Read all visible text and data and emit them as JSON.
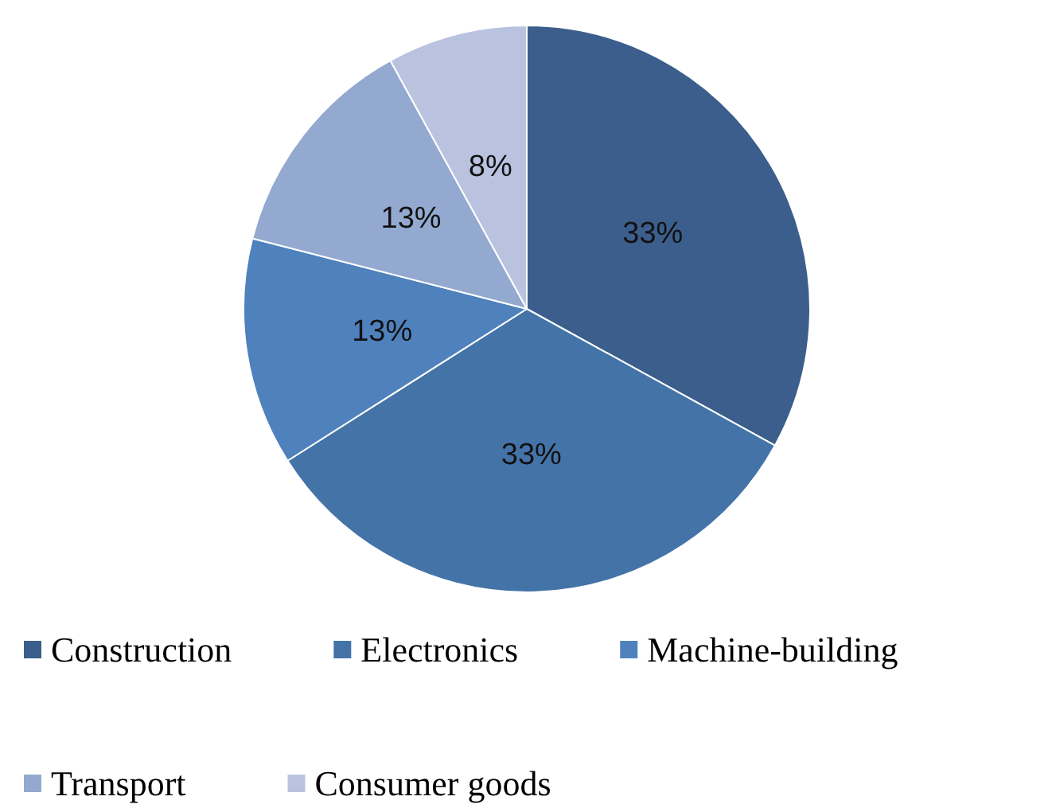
{
  "chart_data": {
    "type": "pie",
    "categories": [
      "Construction",
      "Electronics",
      "Machine-building",
      "Transport",
      "Consumer goods"
    ],
    "values": [
      33,
      33,
      13,
      13,
      8
    ],
    "value_labels": [
      "33%",
      "33%",
      "13%",
      "13%",
      "8%"
    ],
    "colors": [
      "#3b5e8c",
      "#4473a8",
      "#4f81bd",
      "#93a9cf",
      "#b9c3df"
    ],
    "legend": "bottom"
  }
}
